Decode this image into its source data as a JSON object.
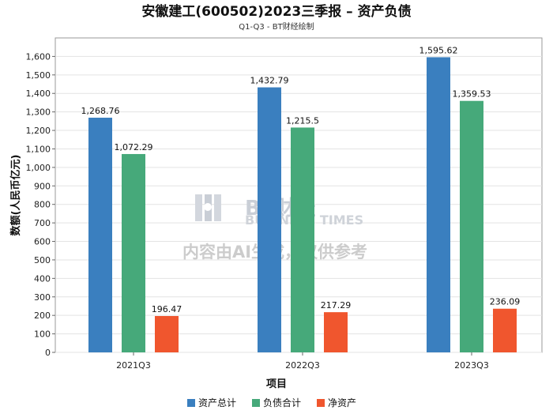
{
  "chart_data": {
    "type": "bar",
    "title": "安徽建工(600502)2023三季报 – 资产负债",
    "subtitle": "Q1-Q3 - BT财经绘制",
    "xlabel": "项目",
    "ylabel": "数额(人民币亿元)",
    "categories": [
      "2021Q3",
      "2022Q3",
      "2023Q3"
    ],
    "ylim": [
      0,
      1700
    ],
    "yticks": [
      "0",
      "100",
      "200",
      "300",
      "400",
      "500",
      "600",
      "700",
      "800",
      "900",
      "1,000",
      "1,100",
      "1,200",
      "1,300",
      "1,400",
      "1,500",
      "1,600"
    ],
    "grid": true,
    "legend_position": "bottom",
    "series": [
      {
        "name": "资产总计",
        "color": "#3a7fbf",
        "values": [
          1268.76,
          1432.79,
          1595.62
        ],
        "labels": [
          "1,268.76",
          "1,432.79",
          "1,595.62"
        ]
      },
      {
        "name": "负债合计",
        "color": "#46a97a",
        "values": [
          1072.29,
          1215.5,
          1359.53
        ],
        "labels": [
          "1,072.29",
          "1,215.5",
          "1,359.53"
        ]
      },
      {
        "name": "净资产",
        "color": "#f0562e",
        "values": [
          196.47,
          217.29,
          236.09
        ],
        "labels": [
          "196.47",
          "217.29",
          "236.09"
        ]
      }
    ]
  },
  "watermark": {
    "brand": "BT财经",
    "brand_en": "BUSINESS TIMES",
    "note": "内容由AI生成，仅供参考"
  }
}
